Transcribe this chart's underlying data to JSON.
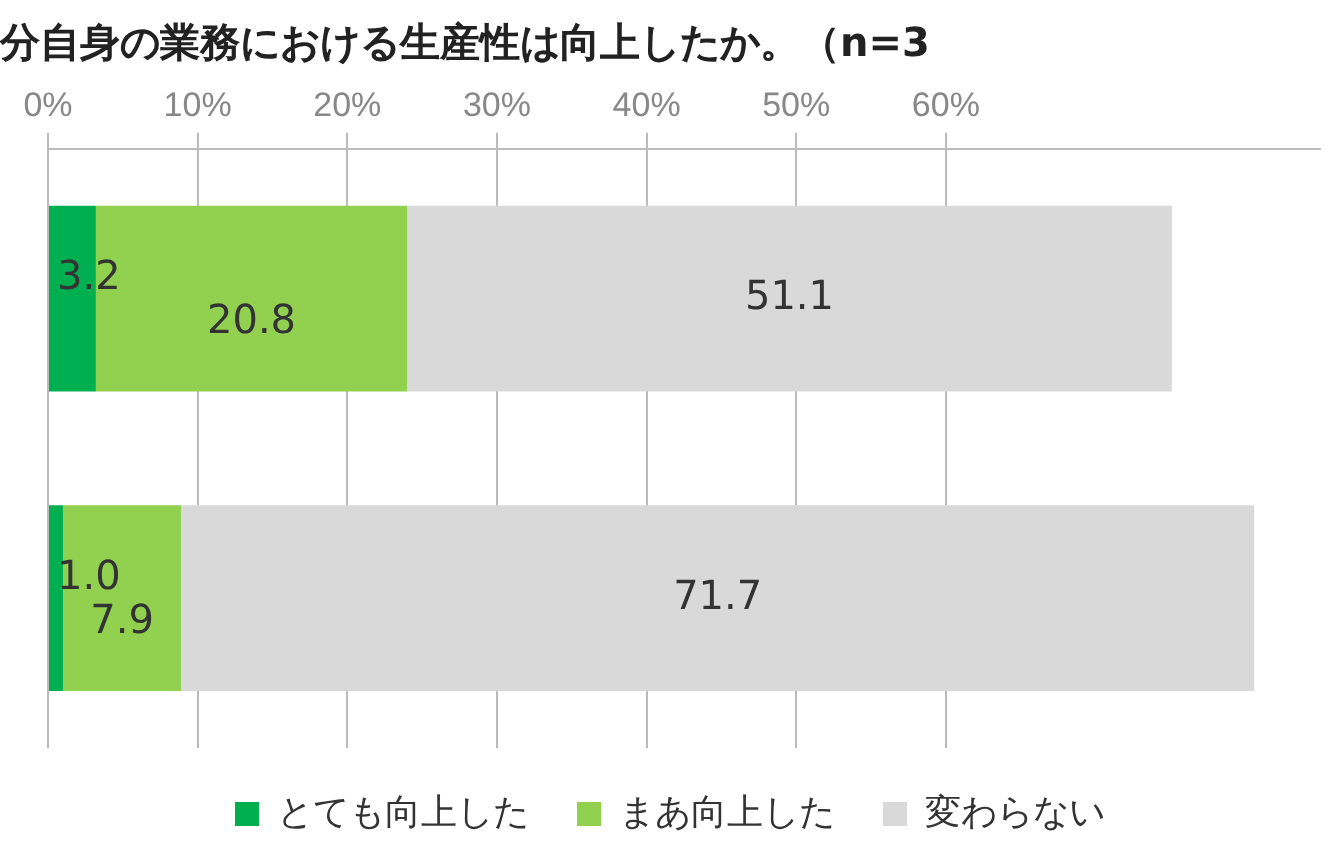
{
  "chart_data": {
    "type": "bar",
    "orientation": "horizontal",
    "stacked": true,
    "title": "分自身の業務における生産性は向上したか。（n=3",
    "categories": [
      null,
      null
    ],
    "series": [
      {
        "name": "とても向上した",
        "color": "#00b050",
        "values": [
          3.2,
          1.0
        ],
        "value_labels": [
          "3.2",
          "1.0"
        ]
      },
      {
        "name": "まあ向上した",
        "color": "#92d050",
        "values": [
          20.8,
          7.9
        ],
        "value_labels": [
          "20.8",
          "7.9"
        ]
      },
      {
        "name": "変わらない",
        "color": "#d9d9d9",
        "values": [
          51.1,
          71.7
        ],
        "value_labels": [
          "51.1",
          "71.7"
        ]
      }
    ],
    "xlim": [
      0,
      85
    ],
    "xticks": [
      {
        "value": 0,
        "label": "0%"
      },
      {
        "value": 10,
        "label": "10%"
      },
      {
        "value": 20,
        "label": "20%"
      },
      {
        "value": 30,
        "label": "30%"
      },
      {
        "value": 40,
        "label": "40%"
      },
      {
        "value": 50,
        "label": "50%"
      },
      {
        "value": 60,
        "label": "60%"
      }
    ],
    "grid": "x",
    "legend": "bottom"
  }
}
